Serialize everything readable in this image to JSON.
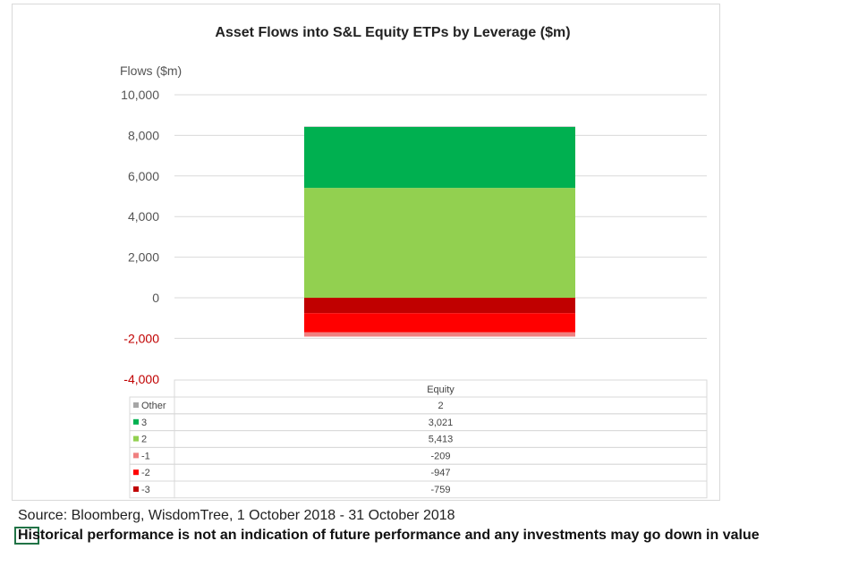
{
  "chart_data": {
    "type": "bar",
    "stacked": true,
    "title": "Asset Flows into S&L Equity ETPs by Leverage ($m)",
    "ylabel": "Flows ($m)",
    "categories": [
      "Equity"
    ],
    "ylim": [
      -4000,
      10000
    ],
    "yticks": [
      10000,
      8000,
      6000,
      4000,
      2000,
      0,
      -2000,
      -4000
    ],
    "ytick_labels": [
      "10,000",
      "8,000",
      "6,000",
      "4,000",
      "2,000",
      "0",
      "-2,000",
      "-4,000"
    ],
    "negative_tick_color": "#c00000",
    "grid": true,
    "legend": "data-table",
    "series": [
      {
        "name": "Other",
        "values": [
          2
        ],
        "display": "2",
        "color": "#a6a6a6"
      },
      {
        "name": "3",
        "values": [
          3021
        ],
        "display": "3,021",
        "color": "#00b050"
      },
      {
        "name": "2",
        "values": [
          5413
        ],
        "display": "5,413",
        "color": "#92d050"
      },
      {
        "name": "-1",
        "values": [
          -209
        ],
        "display": "-209",
        "color": "#f08080"
      },
      {
        "name": "-2",
        "values": [
          -947
        ],
        "display": "-947",
        "color": "#ff0000"
      },
      {
        "name": "-3",
        "values": [
          -759
        ],
        "display": "-759",
        "color": "#c00000"
      }
    ]
  },
  "footer": {
    "source": "Source: Bloomberg, WisdomTree, 1 October 2018  - 31 October 2018",
    "disclaimer": "Historical performance is not an indication of future performance and any investments may go down in value"
  }
}
